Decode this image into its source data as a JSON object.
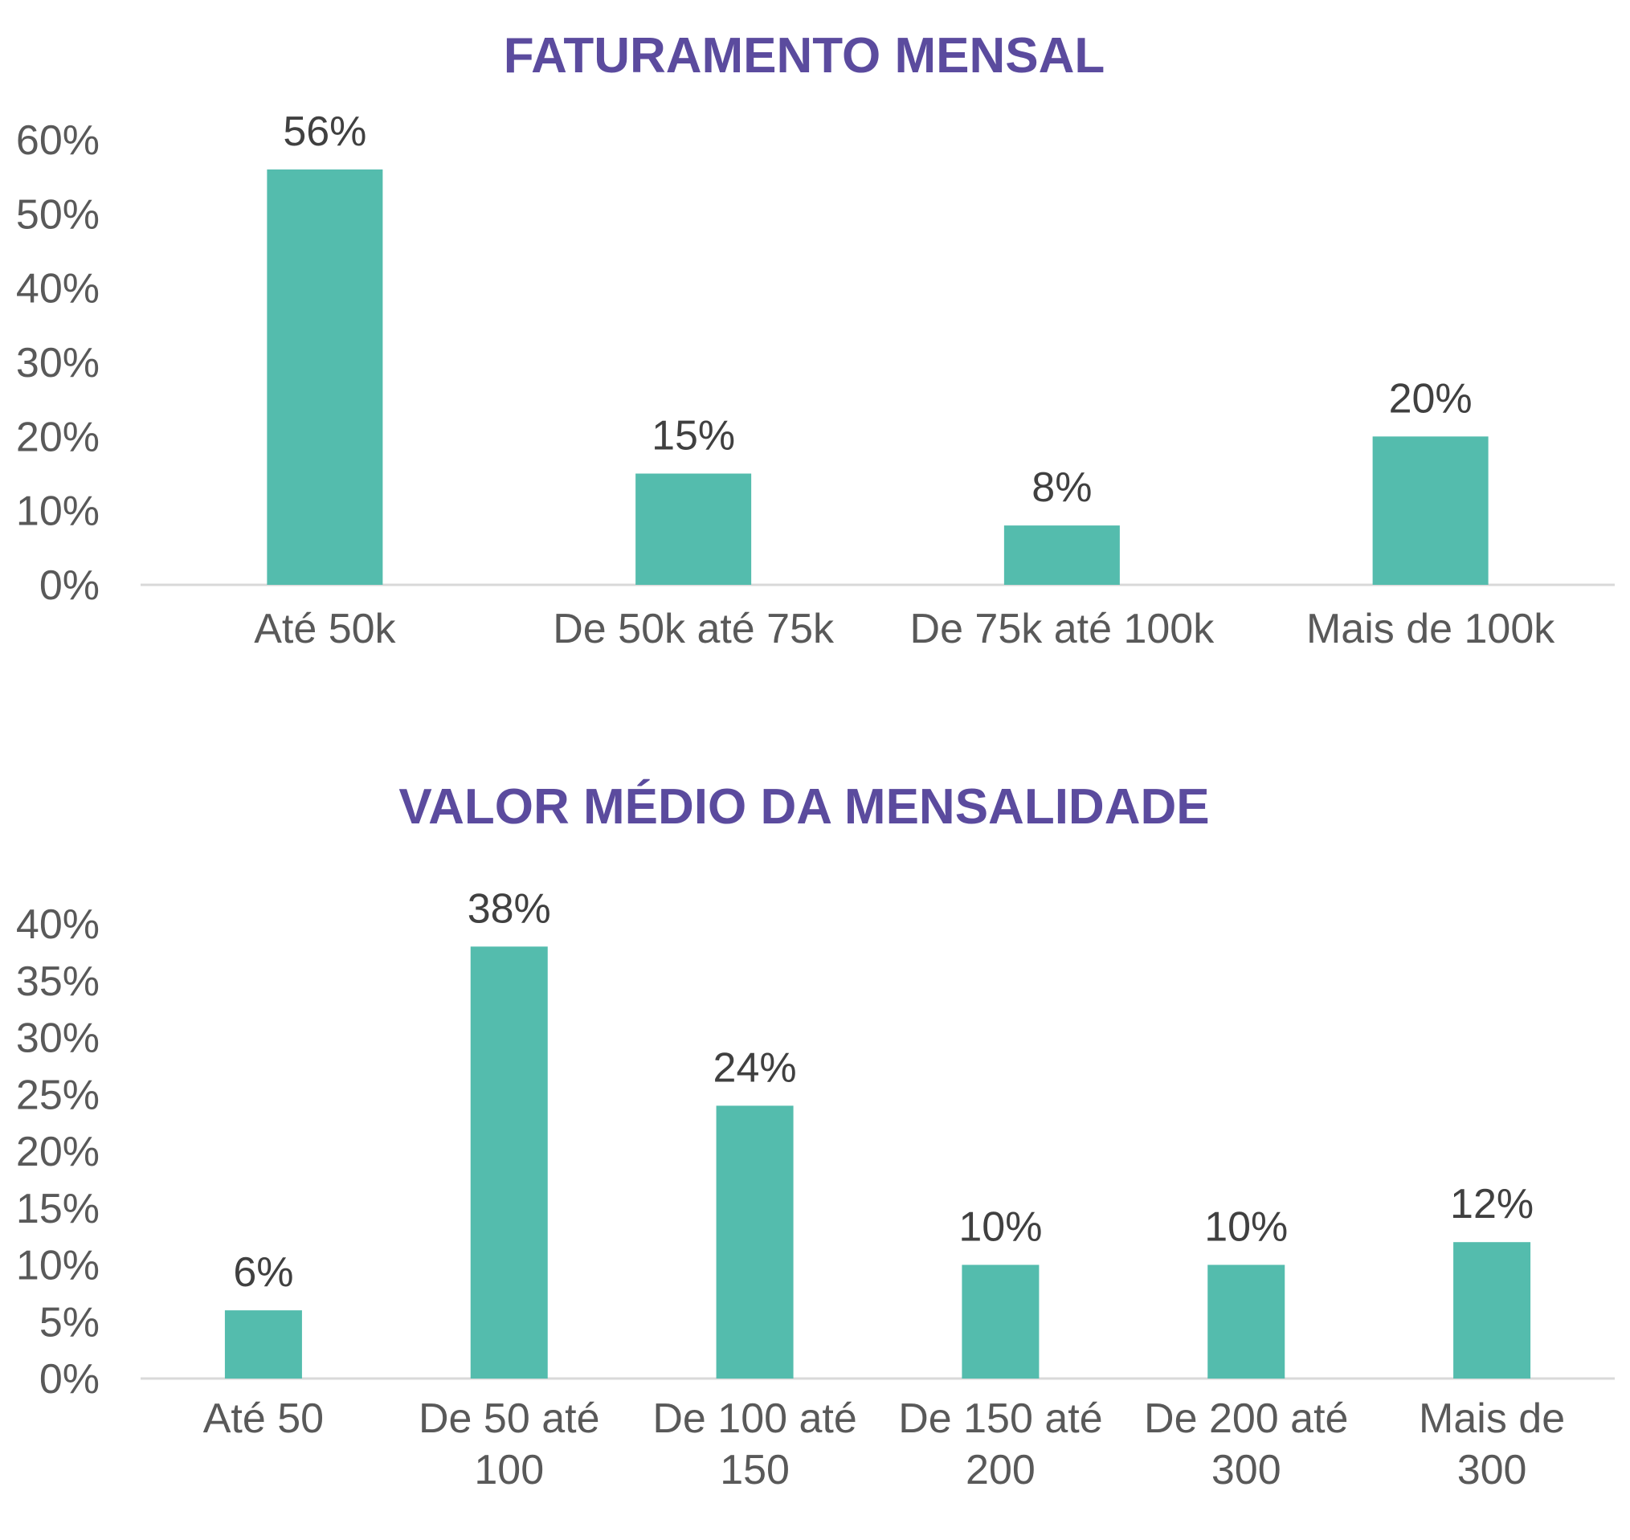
{
  "colors": {
    "title": "#5b4b9e",
    "bar": "#54bcad",
    "axis": "#d9d9d9",
    "tick_text": "#595959",
    "label_text": "#404040"
  },
  "chart_data": [
    {
      "type": "bar",
      "title": "FATURAMENTO MENSAL",
      "xlabel": "",
      "ylabel": "",
      "ylim": [
        0,
        60
      ],
      "yticks": [
        0,
        10,
        20,
        30,
        40,
        50,
        60
      ],
      "ytick_labels": [
        "0%",
        "10%",
        "20%",
        "30%",
        "40%",
        "50%",
        "60%"
      ],
      "categories": [
        [
          "Até 50k"
        ],
        [
          "De 50k até 75k"
        ],
        [
          "De 75k até 100k"
        ],
        [
          "Mais de 100k"
        ]
      ],
      "values": [
        56,
        15,
        8,
        20
      ],
      "value_labels": [
        "56%",
        "15%",
        "8%",
        "20%"
      ],
      "grid": false,
      "legend": "none"
    },
    {
      "type": "bar",
      "title": "VALOR MÉDIO DA MENSALIDADE",
      "xlabel": "",
      "ylabel": "",
      "ylim": [
        0,
        40
      ],
      "yticks": [
        0,
        5,
        10,
        15,
        20,
        25,
        30,
        35,
        40
      ],
      "ytick_labels": [
        "0%",
        "5%",
        "10%",
        "15%",
        "20%",
        "25%",
        "30%",
        "35%",
        "40%"
      ],
      "categories": [
        [
          "Até 50"
        ],
        [
          "De 50 até",
          "100"
        ],
        [
          "De 100 até",
          "150"
        ],
        [
          "De 150 até",
          "200"
        ],
        [
          "De 200 até",
          "300"
        ],
        [
          "Mais de",
          "300"
        ]
      ],
      "values": [
        6,
        38,
        24,
        10,
        10,
        12
      ],
      "value_labels": [
        "6%",
        "38%",
        "24%",
        "10%",
        "10%",
        "12%"
      ],
      "grid": false,
      "legend": "none"
    }
  ]
}
